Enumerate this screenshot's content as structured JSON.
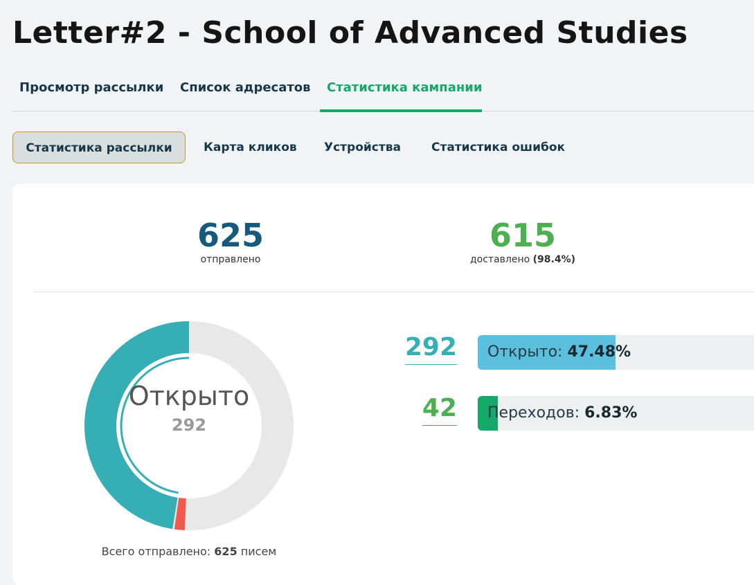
{
  "header": {
    "title": "Letter#2 - School of Advanced Studies"
  },
  "tabs": [
    {
      "label": "Просмотр рассылки",
      "active": false
    },
    {
      "label": "Список адресатов",
      "active": false
    },
    {
      "label": "Статистика кампании",
      "active": true
    }
  ],
  "subtabs": [
    {
      "label": "Статистика рассылки",
      "active": true
    },
    {
      "label": "Карта кликов",
      "active": false
    },
    {
      "label": "Устройства",
      "active": false
    },
    {
      "label": "Статистика ошибок",
      "active": false
    }
  ],
  "summary": {
    "sent": {
      "value": "625",
      "label": "отправлено",
      "color": "#155a7c"
    },
    "delivered": {
      "value": "615",
      "label": "доставлено",
      "percent": "(98.4%)",
      "color": "#4caf50"
    }
  },
  "donut": {
    "label": "Открыто",
    "value": "292",
    "total_prefix": "Всего отправлено:",
    "total_value": "625",
    "total_suffix": "писем",
    "segments": {
      "opened_fraction": 0.4748,
      "failed_fraction": 0.016
    },
    "colors": {
      "opened": "#36aeb5",
      "failed": "#ef5b4f",
      "rest": "#e8e8e8"
    }
  },
  "metrics": [
    {
      "count": "292",
      "label": "Открыто:",
      "percent": "47.48%",
      "fill": 0.4748,
      "color": "#36aeb5",
      "bar_color": "#5bc0de"
    },
    {
      "count": "42",
      "label": "Переходов:",
      "percent": "6.83%",
      "fill": 0.0683,
      "color": "#4caf50",
      "bar_color": "#14a86b"
    }
  ]
}
